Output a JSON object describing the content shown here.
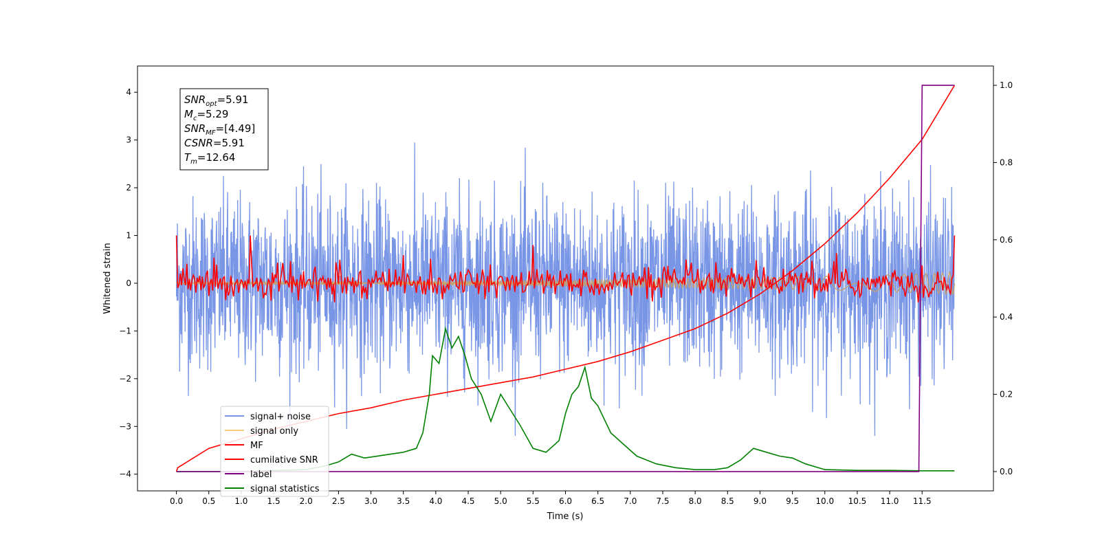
{
  "chart_data": {
    "type": "line",
    "xlabel": "Time (s)",
    "ylabel": "Whitened strain",
    "xlim": [
      -0.6,
      12.6
    ],
    "ylim": [
      -4.35,
      4.55
    ],
    "y2lim": [
      -0.05,
      1.05
    ],
    "grid": false,
    "legend_position": "lower-left",
    "x_ticks": [
      0.0,
      0.5,
      1.0,
      1.5,
      2.0,
      2.5,
      3.0,
      3.5,
      4.0,
      4.5,
      5.0,
      5.5,
      6.0,
      6.5,
      7.0,
      7.5,
      8.0,
      8.5,
      9.0,
      9.5,
      10.0,
      10.5,
      11.0,
      11.5
    ],
    "x_tick_labels": [
      "0.0",
      "0.5",
      "1.0",
      "1.5",
      "2.0",
      "2.5",
      "3.0",
      "3.5",
      "4.0",
      "4.5",
      "5.0",
      "5.5",
      "6.0",
      "6.5",
      "7.0",
      "7.5",
      "8.0",
      "8.5",
      "9.0",
      "9.5",
      "10.0",
      "10.5",
      "11.0",
      "11.5"
    ],
    "y_ticks": [
      -4,
      -3,
      -2,
      -1,
      0,
      1,
      2,
      3,
      4
    ],
    "y_tick_labels": [
      "−4",
      "−3",
      "−2",
      "−1",
      "0",
      "1",
      "2",
      "3",
      "4"
    ],
    "y2_ticks": [
      0.0,
      0.2,
      0.4,
      0.6,
      0.8,
      1.0
    ],
    "y2_tick_labels": [
      "0.0",
      "0.2",
      "0.4",
      "0.6",
      "0.8",
      "1.0"
    ],
    "annotation": {
      "lines": [
        {
          "sym": "SNR",
          "sub": "opt",
          "text": "=5.91"
        },
        {
          "sym": "M",
          "sub": "c",
          "text": "=5.29"
        },
        {
          "sym": "SNR",
          "sub": "MF",
          "text": "=[4.49]"
        },
        {
          "sym": "CSNR",
          "sub": "",
          "text": "=5.91"
        },
        {
          "sym": "T",
          "sub": "m",
          "text": "=12.64"
        }
      ]
    },
    "series": [
      {
        "name": "signal+ noise",
        "color": "#7895e6",
        "axis": "left",
        "sample_dt": 0.005,
        "amplitude_rms": 1.0,
        "x_start": 0.0,
        "x_end": 12.0
      },
      {
        "name": "signal only",
        "color": "#f5c97a",
        "axis": "left",
        "x": [
          0.0,
          3.0,
          6.0,
          8.0,
          9.5,
          10.5,
          11.0,
          11.5,
          11.8,
          12.0
        ],
        "envelope": [
          0.02,
          0.04,
          0.07,
          0.1,
          0.13,
          0.16,
          0.18,
          0.2,
          0.22,
          0.24
        ]
      },
      {
        "name": "MF",
        "color": "#ff0000",
        "axis": "left",
        "sample_dt": 0.02,
        "amplitude_rms": 0.15,
        "x": [
          0.0,
          0.03,
          0.06,
          1.15,
          1.16,
          5.5,
          11.95,
          12.0
        ],
        "y_spikes": [
          1.0,
          -0.1,
          0.2,
          1.0,
          0.4,
          0.8,
          0.1,
          1.0
        ]
      },
      {
        "name": "cumilative SNR",
        "color": "#ff0000",
        "axis": "right",
        "x": [
          0.0,
          0.02,
          0.5,
          1.0,
          1.5,
          2.0,
          2.5,
          3.0,
          3.5,
          4.0,
          4.5,
          5.0,
          5.5,
          6.0,
          6.5,
          7.0,
          7.5,
          8.0,
          8.5,
          9.0,
          9.5,
          10.0,
          10.5,
          11.0,
          11.5,
          12.0
        ],
        "y": [
          0.0,
          0.01,
          0.06,
          0.085,
          0.11,
          0.13,
          0.15,
          0.165,
          0.185,
          0.2,
          0.215,
          0.23,
          0.245,
          0.265,
          0.285,
          0.31,
          0.34,
          0.37,
          0.41,
          0.46,
          0.52,
          0.59,
          0.67,
          0.76,
          0.86,
          1.0
        ]
      },
      {
        "name": "label",
        "color": "#800080",
        "axis": "right",
        "x": [
          0.0,
          11.45,
          11.5,
          12.0
        ],
        "y": [
          0.0,
          0.0,
          1.0,
          1.0
        ]
      },
      {
        "name": "signal statistics",
        "color": "#008000",
        "axis": "right",
        "x": [
          0.0,
          1.0,
          2.0,
          2.3,
          2.5,
          2.7,
          2.9,
          3.1,
          3.3,
          3.5,
          3.7,
          3.8,
          3.9,
          3.95,
          4.05,
          4.15,
          4.25,
          4.35,
          4.45,
          4.55,
          4.7,
          4.85,
          5.0,
          5.15,
          5.3,
          5.5,
          5.7,
          5.9,
          6.0,
          6.1,
          6.2,
          6.3,
          6.4,
          6.5,
          6.7,
          6.9,
          7.1,
          7.4,
          7.7,
          8.0,
          8.3,
          8.5,
          8.7,
          8.9,
          9.1,
          9.3,
          9.5,
          9.7,
          10.0,
          10.5,
          11.0,
          11.5,
          12.0
        ],
        "y": [
          0.0,
          0.0,
          0.005,
          0.015,
          0.025,
          0.045,
          0.035,
          0.04,
          0.045,
          0.05,
          0.06,
          0.1,
          0.2,
          0.3,
          0.28,
          0.37,
          0.32,
          0.35,
          0.3,
          0.24,
          0.2,
          0.13,
          0.2,
          0.16,
          0.12,
          0.06,
          0.05,
          0.08,
          0.15,
          0.2,
          0.22,
          0.27,
          0.19,
          0.17,
          0.1,
          0.07,
          0.04,
          0.02,
          0.01,
          0.005,
          0.005,
          0.01,
          0.03,
          0.06,
          0.05,
          0.04,
          0.035,
          0.02,
          0.005,
          0.003,
          0.003,
          0.002,
          0.002
        ]
      }
    ]
  }
}
